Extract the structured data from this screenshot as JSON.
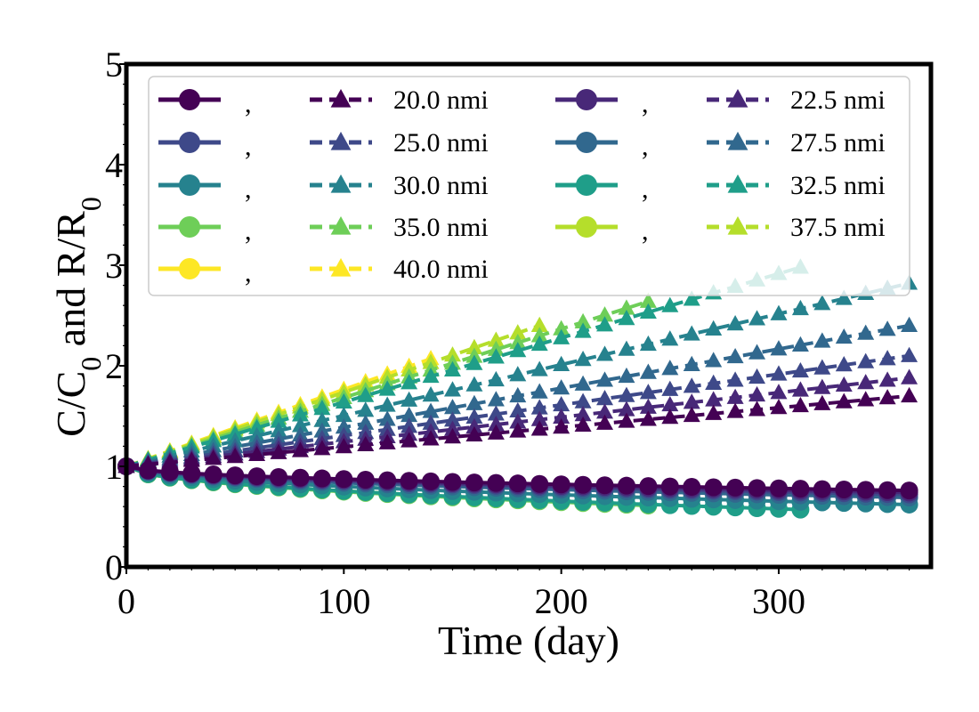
{
  "chart_data": {
    "type": "line",
    "xlabel": "Time (day)",
    "ylabel_main": "C/C",
    "ylabel_sub1": "0",
    "ylabel_mid": " and R/R",
    "ylabel_sub2": "0",
    "xlim": [
      0,
      370
    ],
    "ylim": [
      0,
      5
    ],
    "xticks": [
      "0",
      "100",
      "200",
      "300"
    ],
    "xtick_values": [
      0,
      100,
      200,
      300
    ],
    "yticks": [
      "0",
      "1",
      "2",
      "3",
      "4",
      "5"
    ],
    "ytick_values": [
      0,
      1,
      2,
      3,
      4,
      5
    ],
    "grid": false,
    "legend_position": "top",
    "legend_columns": 4,
    "legend_circle_label": ",",
    "series": [
      {
        "name": "20.0 nmi",
        "color": "#440154",
        "x_end": 360,
        "c_end": 0.76,
        "r_end": 1.7
      },
      {
        "name": "22.5 nmi",
        "color": "#482878",
        "x_end": 360,
        "c_end": 0.74,
        "r_end": 1.88
      },
      {
        "name": "25.0 nmi",
        "color": "#3e4989",
        "x_end": 360,
        "c_end": 0.72,
        "r_end": 2.1
      },
      {
        "name": "27.5 nmi",
        "color": "#31688e",
        "x_end": 360,
        "c_end": 0.69,
        "r_end": 2.4
      },
      {
        "name": "30.0 nmi",
        "color": "#26828e",
        "x_end": 360,
        "c_end": 0.62,
        "r_end": 2.82
      },
      {
        "name": "32.5 nmi",
        "color": "#1f9e89",
        "x_end": 310,
        "c_end": 0.57,
        "r_end": 2.98
      },
      {
        "name": "35.0 nmi",
        "color": "#6ece58",
        "x_end": 240,
        "c_end": 0.61,
        "r_end": 2.64
      },
      {
        "name": "37.5 nmi",
        "color": "#b5de2b",
        "x_end": 190,
        "c_end": 0.66,
        "r_end": 2.4
      },
      {
        "name": "40.0 nmi",
        "color": "#fde725",
        "x_end": 140,
        "c_end": 0.71,
        "r_end": 2.07
      }
    ]
  }
}
